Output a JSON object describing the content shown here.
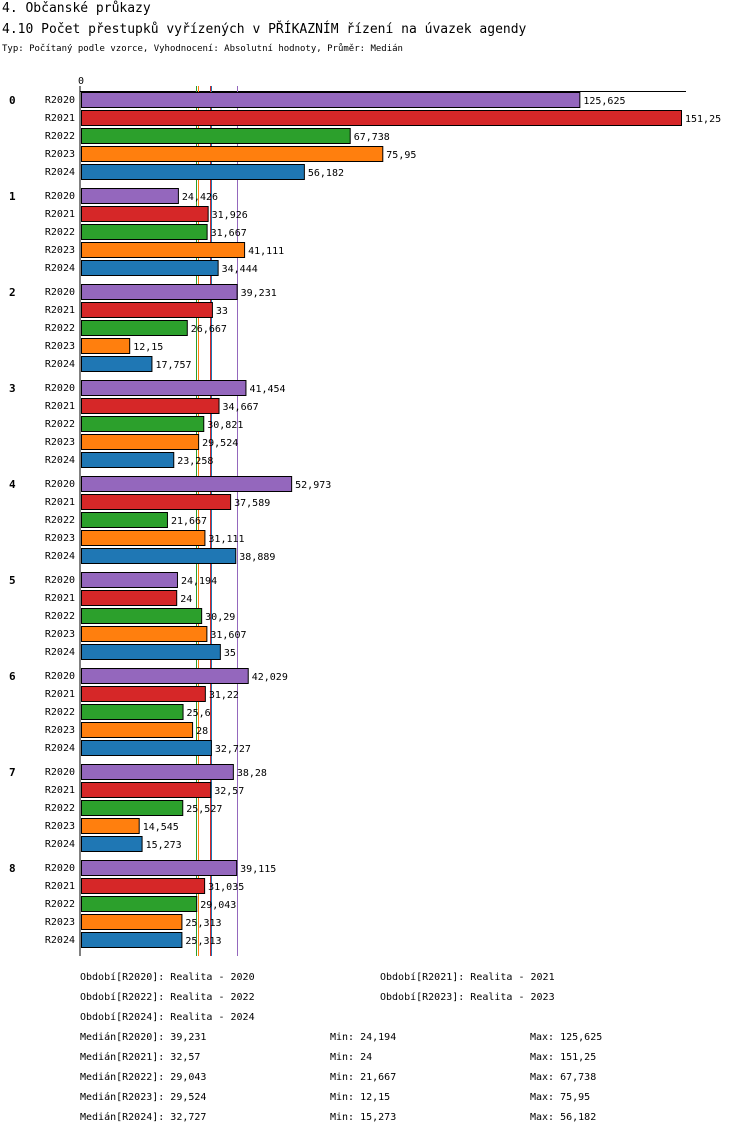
{
  "header": {
    "section": "4. Občanské průkazy",
    "title": "4.10 Počet přestupků vyřízených v PŘÍKAZNÍM řízení na úvazek agendy",
    "subtitle": "Typ: Počítaný podle vzorce, Vyhodnocení: Absolutní hodnoty, Průměr: Medián"
  },
  "chart_data": {
    "type": "bar",
    "orientation": "horizontal",
    "axis_zero_label": "0",
    "xlim": [
      0,
      151.25
    ],
    "groups": [
      "0",
      "1",
      "2",
      "3",
      "4",
      "5",
      "6",
      "7",
      "8"
    ],
    "series": [
      {
        "name": "R2020",
        "color": "#9467bd",
        "values": [
          125.625,
          24.426,
          39.231,
          41.454,
          52.973,
          24.194,
          42.029,
          38.28,
          39.115
        ],
        "labels": [
          "125,625",
          "24,426",
          "39,231",
          "41,454",
          "52,973",
          "24,194",
          "42,029",
          "38,28",
          "39,115"
        ]
      },
      {
        "name": "R2021",
        "color": "#d62728",
        "values": [
          151.25,
          31.926,
          33,
          34.667,
          37.589,
          24,
          31.22,
          32.57,
          31.035
        ],
        "labels": [
          "151,25",
          "31,926",
          "33",
          "34,667",
          "37,589",
          "24",
          "31,22",
          "32,57",
          "31,035"
        ]
      },
      {
        "name": "R2022",
        "color": "#2ca02c",
        "values": [
          67.738,
          31.667,
          26.667,
          30.821,
          21.667,
          30.29,
          25.6,
          25.527,
          29.043
        ],
        "labels": [
          "67,738",
          "31,667",
          "26,667",
          "30,821",
          "21,667",
          "30,29",
          "25,6",
          "25,527",
          "29,043"
        ]
      },
      {
        "name": "R2023",
        "color": "#ff7f0e",
        "values": [
          75.95,
          41.111,
          12.15,
          29.524,
          31.111,
          31.607,
          28,
          14.545,
          25.313
        ],
        "labels": [
          "75,95",
          "41,111",
          "12,15",
          "29,524",
          "31,111",
          "31,607",
          "28",
          "14,545",
          "25,313"
        ]
      },
      {
        "name": "R2024",
        "color": "#1f77b4",
        "values": [
          56.182,
          34.444,
          17.757,
          23.258,
          38.889,
          35,
          32.727,
          15.273,
          25.313
        ],
        "labels": [
          "56,182",
          "34,444",
          "17,757",
          "23,258",
          "38,889",
          "35",
          "32,727",
          "15,273",
          "25,313"
        ]
      }
    ],
    "median_lines": [
      {
        "series": "R2020",
        "value": 39.231,
        "color": "#9467bd"
      },
      {
        "series": "R2021",
        "value": 32.57,
        "color": "#d62728"
      },
      {
        "series": "R2022",
        "value": 29.043,
        "color": "#2ca02c"
      },
      {
        "series": "R2023",
        "value": 29.524,
        "color": "#ff7f0e"
      },
      {
        "series": "R2024",
        "value": 32.727,
        "color": "#1f77b4"
      }
    ]
  },
  "legend": {
    "periods": [
      "Období[R2020]: Realita - 2020",
      "Období[R2021]: Realita - 2021",
      "Období[R2022]: Realita - 2022",
      "Období[R2023]: Realita - 2023",
      "Období[R2024]: Realita - 2024"
    ],
    "stats": [
      {
        "median": "Medián[R2020]: 39,231",
        "min": "Min: 24,194",
        "max": "Max: 125,625"
      },
      {
        "median": "Medián[R2021]: 32,57",
        "min": "Min: 24",
        "max": "Max: 151,25"
      },
      {
        "median": "Medián[R2022]: 29,043",
        "min": "Min: 21,667",
        "max": "Max: 67,738"
      },
      {
        "median": "Medián[R2023]: 29,524",
        "min": "Min: 12,15",
        "max": "Max: 75,95"
      },
      {
        "median": "Medián[R2024]: 32,727",
        "min": "Min: 15,273",
        "max": "Max: 56,182"
      }
    ]
  }
}
